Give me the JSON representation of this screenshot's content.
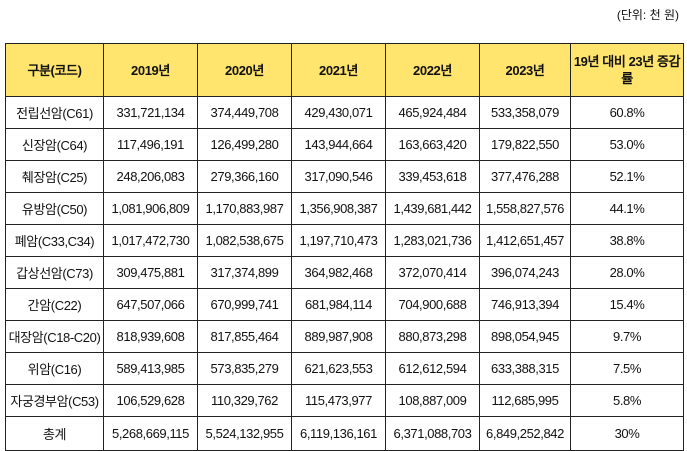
{
  "unit": "(단위: 천 원)",
  "headers": [
    "구분(코드)",
    "2019년",
    "2020년",
    "2021년",
    "2022년",
    "2023년",
    "19년 대비 23년 증감률"
  ],
  "rows": [
    [
      "전립선암(C61)",
      "331,721,134",
      "374,449,708",
      "429,430,071",
      "465,924,484",
      "533,358,079",
      "60.8%"
    ],
    [
      "신장암(C64)",
      "117,496,191",
      "126,499,280",
      "143,944,664",
      "163,663,420",
      "179,822,550",
      "53.0%"
    ],
    [
      "췌장암(C25)",
      "248,206,083",
      "279,366,160",
      "317,090,546",
      "339,453,618",
      "377,476,288",
      "52.1%"
    ],
    [
      "유방암(C50)",
      "1,081,906,809",
      "1,170,883,987",
      "1,356,908,387",
      "1,439,681,442",
      "1,558,827,576",
      "44.1%"
    ],
    [
      "폐암(C33,C34)",
      "1,017,472,730",
      "1,082,538,675",
      "1,197,710,473",
      "1,283,021,736",
      "1,412,651,457",
      "38.8%"
    ],
    [
      "갑상선암(C73)",
      "309,475,881",
      "317,374,899",
      "364,982,468",
      "372,070,414",
      "396,074,243",
      "28.0%"
    ],
    [
      "간암(C22)",
      "647,507,066",
      "670,999,741",
      "681,984,114",
      "704,900,688",
      "746,913,394",
      "15.4%"
    ],
    [
      "대장암(C18-C20)",
      "818,939,608",
      "817,855,464",
      "889,987,908",
      "880,873,298",
      "898,054,945",
      "9.7%"
    ],
    [
      "위암(C16)",
      "589,413,985",
      "573,835,279",
      "621,623,553",
      "612,612,594",
      "633,388,315",
      "7.5%"
    ],
    [
      "자궁경부암(C53)",
      "106,529,628",
      "110,329,762",
      "115,473,977",
      "108,887,009",
      "112,685,995",
      "5.8%"
    ],
    [
      "총계",
      "5,268,669,115",
      "5,524,132,955",
      "6,119,136,161",
      "6,371,088,703",
      "6,849,252,842",
      "30%"
    ]
  ]
}
